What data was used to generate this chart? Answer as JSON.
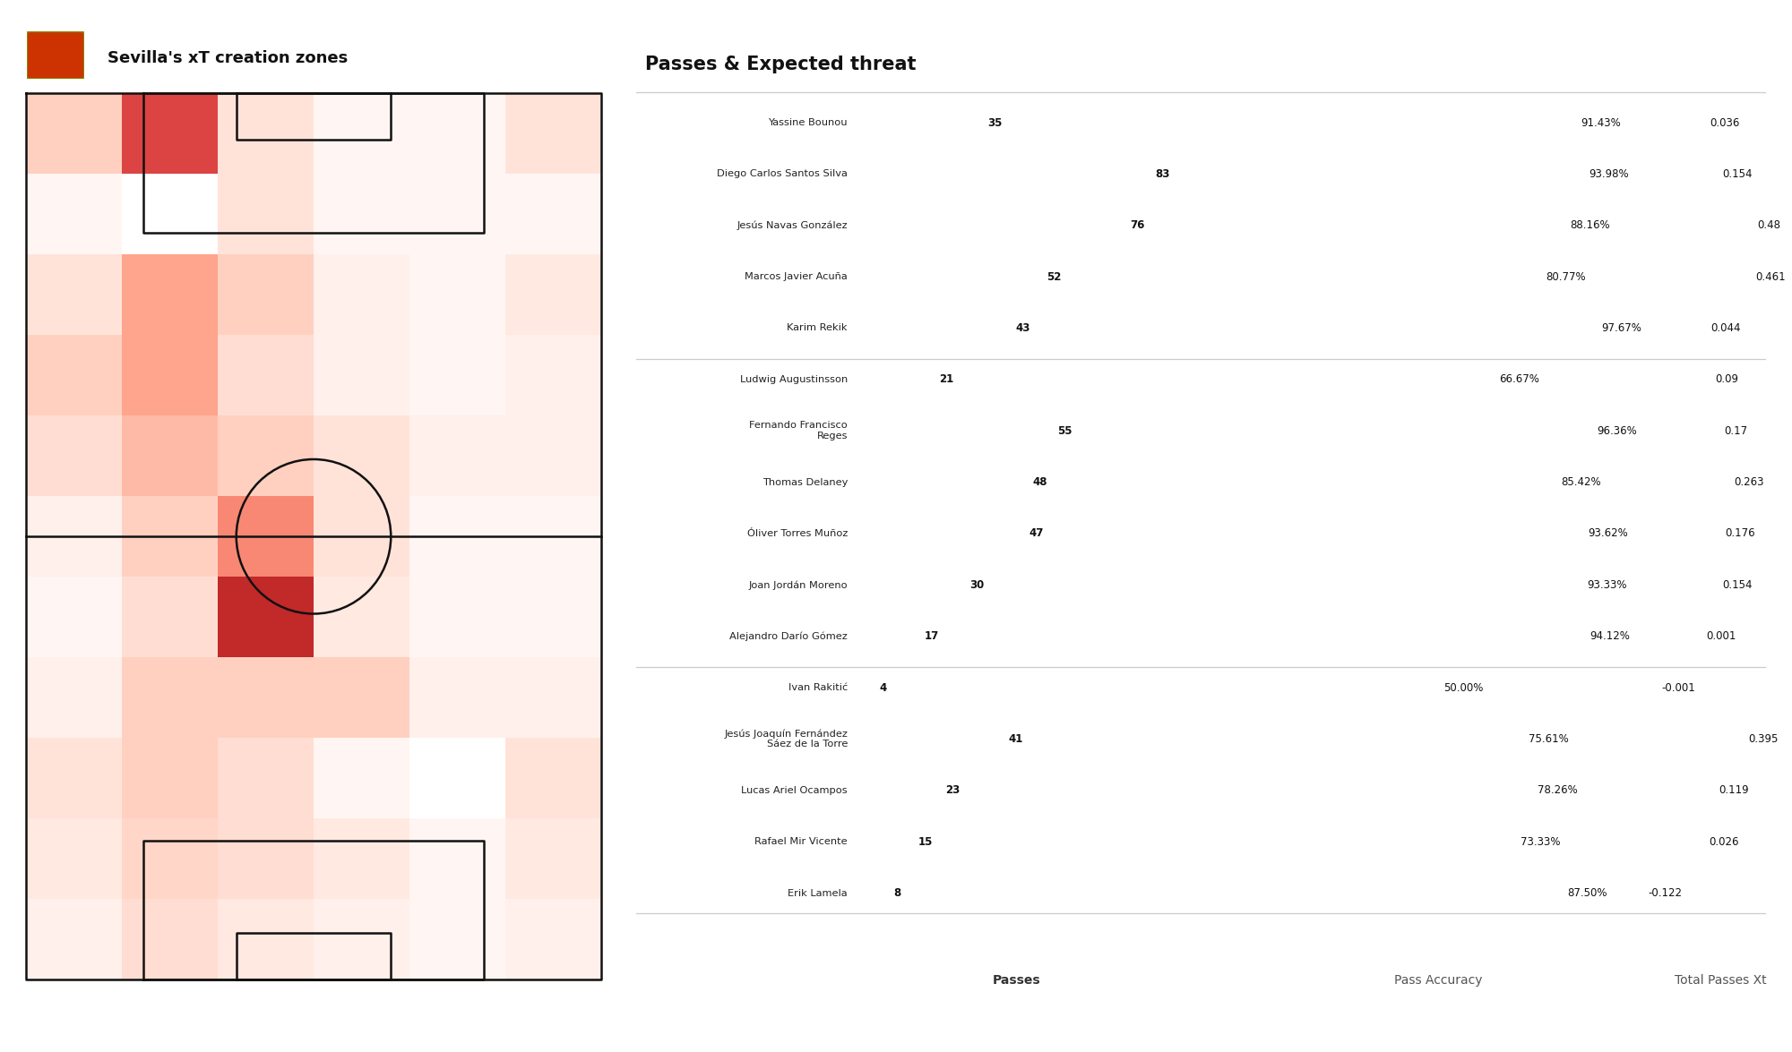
{
  "title_left": "Sevilla's xT creation zones",
  "title_right": "Passes & Expected threat",
  "players": [
    "Yassine Bounou",
    "Diego Carlos Santos Silva",
    "Jesús Navas González",
    "Marcos Javier Acuña",
    "Karim Rekik",
    "Ludwig Augustinsson",
    "Fernando Francisco\nReges",
    "Thomas Delaney",
    "Óliver Torres Muñoz",
    "Joan Jordán Moreno",
    "Alejandro Darío Gómez",
    "Ivan Rakitić",
    "Jesús Joaquín Fernández\nSáez de la Torre",
    "Lucas Ariel Ocampos",
    "Rafael Mir Vicente",
    "Erik Lamela"
  ],
  "passes": [
    35,
    83,
    76,
    52,
    43,
    21,
    55,
    48,
    47,
    30,
    17,
    4,
    41,
    23,
    15,
    8
  ],
  "pass_accuracy": [
    91.43,
    93.98,
    88.16,
    80.77,
    97.67,
    66.67,
    96.36,
    85.42,
    93.62,
    93.33,
    94.12,
    50.0,
    75.61,
    78.26,
    73.33,
    87.5
  ],
  "xT": [
    0.036,
    0.154,
    0.48,
    0.461,
    0.044,
    0.09,
    0.17,
    0.263,
    0.176,
    0.154,
    0.001,
    -0.001,
    0.395,
    0.119,
    0.026,
    -0.122
  ],
  "passes_colors": [
    "#5bb8d4",
    "#1b4f72",
    "#1b4f72",
    "#2980b9",
    "#2980b9",
    "#aed6f1",
    "#2980b9",
    "#2980b9",
    "#2980b9",
    "#5dade2",
    "#aed6f1",
    "#d5f5e3",
    "#5dade2",
    "#5bb8d4",
    "#aed6f1",
    "#d5f5e3"
  ],
  "accuracy_colors": [
    "#1b4f72",
    "#1b4f72",
    "#1b4f72",
    "#2980b9",
    "#1b4f72",
    "#5dade2",
    "#1b4f72",
    "#2980b9",
    "#1b4f72",
    "#1b4f72",
    "#1b4f72",
    "#a9cce3",
    "#2980b9",
    "#2980b9",
    "#2980b9",
    "#2980b9"
  ],
  "xT_colors": [
    "#aad4a0",
    "#90c880",
    "#2d6e2d",
    "#2d6e2d",
    "#aad4a0",
    "#90c880",
    "#78c060",
    "#56a840",
    "#78c060",
    "#90c880",
    "#aad4a0",
    "#aad4a0",
    "#2d6e2d",
    "#78c060",
    "#aad4a0",
    "#e88080"
  ],
  "dividers_after": [
    5,
    11
  ],
  "heatmap": [
    [
      0.25,
      0.75,
      0.15,
      0.05,
      0.05,
      0.15
    ],
    [
      0.05,
      0.0,
      0.15,
      0.05,
      0.05,
      0.05
    ],
    [
      0.15,
      0.45,
      0.25,
      0.08,
      0.05,
      0.12
    ],
    [
      0.25,
      0.45,
      0.18,
      0.08,
      0.05,
      0.08
    ],
    [
      0.18,
      0.35,
      0.25,
      0.15,
      0.08,
      0.08
    ],
    [
      0.08,
      0.25,
      0.55,
      0.15,
      0.05,
      0.05
    ],
    [
      0.05,
      0.18,
      0.85,
      0.12,
      0.05,
      0.05
    ],
    [
      0.08,
      0.25,
      0.25,
      0.25,
      0.08,
      0.08
    ],
    [
      0.15,
      0.25,
      0.18,
      0.05,
      0.0,
      0.15
    ],
    [
      0.12,
      0.22,
      0.18,
      0.12,
      0.05,
      0.12
    ],
    [
      0.08,
      0.18,
      0.12,
      0.08,
      0.05,
      0.08
    ]
  ],
  "bg_color": "#ffffff",
  "pitch_line_color": "#111111",
  "separator_color": "#cccccc",
  "max_passes": 90,
  "max_acc": 100.0,
  "max_xt": 0.52,
  "min_xt": -0.15
}
